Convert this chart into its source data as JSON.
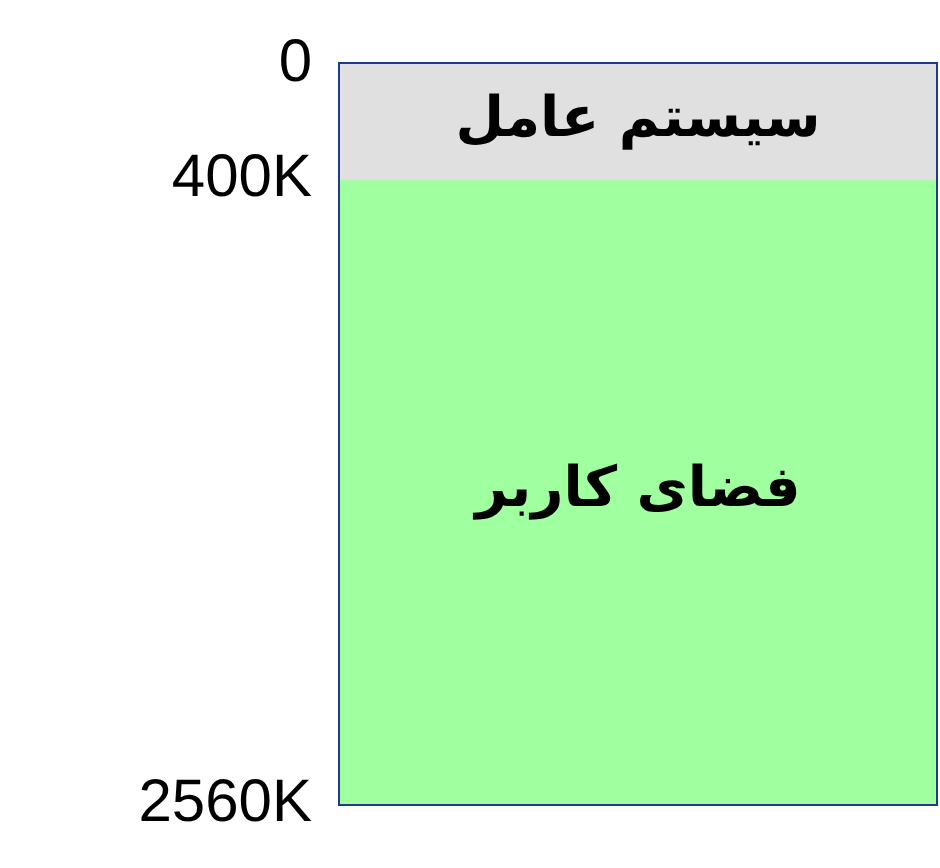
{
  "chart_data": {
    "type": "bar",
    "stacked": true,
    "categories": [
      null
    ],
    "series": [
      {
        "name": "سیستم عامل",
        "color": "#e0e0e0",
        "values": [
          400
        ]
      },
      {
        "name": "فضای کاربر",
        "color": "#a0ff9f",
        "values": [
          2160
        ]
      }
    ],
    "ylim": [
      2560,
      0
    ],
    "yticks": [
      0,
      {
        "value": 400,
        "label": "400K"
      },
      {
        "value": 2560,
        "label": "2560K"
      }
    ],
    "grid": false,
    "legend": false,
    "tick_labels": "y"
  }
}
